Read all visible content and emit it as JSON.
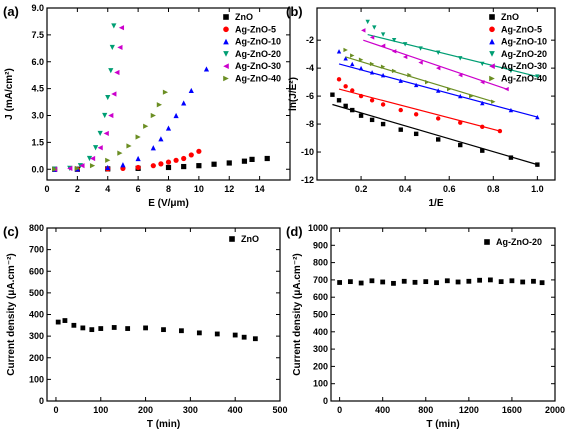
{
  "chart_data": [
    {
      "panel": "(a)",
      "type": "scatter",
      "xlabel": "E (V/μm)",
      "ylabel": "J (mA/cm²)",
      "xlim": [
        0,
        16
      ],
      "ylim": [
        -0.6,
        9.0
      ],
      "x_ticks": [
        0,
        2,
        4,
        6,
        8,
        10,
        12,
        14
      ],
      "y_ticks": [
        0.0,
        1.5,
        3.0,
        4.5,
        6.0,
        7.5,
        9.0
      ],
      "y_tick_labels": [
        "0.0",
        "1.5",
        "3.0",
        "4.5",
        "6.0",
        "7.5",
        "9.0"
      ],
      "legend_position": "top-right",
      "series": [
        {
          "name": "ZnO",
          "marker": "square",
          "color": "#000000",
          "x": [
            0.5,
            2,
            4,
            6,
            8,
            9,
            10,
            11,
            12,
            13,
            13.5,
            14.5
          ],
          "y": [
            0.0,
            0.0,
            0.02,
            0.05,
            0.1,
            0.15,
            0.2,
            0.28,
            0.35,
            0.45,
            0.55,
            0.6
          ]
        },
        {
          "name": "Ag-ZnO-5",
          "marker": "circle",
          "color": "#ff0000",
          "x": [
            0.5,
            2,
            4,
            5,
            6,
            7,
            7.5,
            8,
            8.5,
            9,
            9.5,
            10
          ],
          "y": [
            0.0,
            0.0,
            0.02,
            0.05,
            0.1,
            0.2,
            0.3,
            0.4,
            0.5,
            0.6,
            0.8,
            1.0
          ]
        },
        {
          "name": "Ag-ZnO-10",
          "marker": "triangle-up",
          "color": "#0000ff",
          "x": [
            0.5,
            2,
            4,
            5,
            6,
            7,
            7.5,
            8,
            8.5,
            9,
            9.5,
            10.5
          ],
          "y": [
            0.0,
            0.02,
            0.1,
            0.25,
            0.6,
            1.2,
            1.7,
            2.3,
            3.0,
            3.7,
            4.4,
            5.6
          ]
        },
        {
          "name": "Ag-ZnO-20",
          "marker": "triangle-down",
          "color": "#009e73",
          "x": [
            0.5,
            1.5,
            2.2,
            2.8,
            3.2,
            3.5,
            3.8,
            4.0,
            4.2,
            4.3,
            4.4
          ],
          "y": [
            0.0,
            0.05,
            0.2,
            0.6,
            1.2,
            2.0,
            3.0,
            4.0,
            5.5,
            6.8,
            8.0
          ]
        },
        {
          "name": "Ag-ZnO-30",
          "marker": "triangle-left",
          "color": "#cc00cc",
          "x": [
            0.5,
            1.5,
            2.3,
            3.0,
            3.5,
            3.9,
            4.2,
            4.4,
            4.6,
            4.8,
            4.9
          ],
          "y": [
            0.0,
            0.05,
            0.2,
            0.6,
            1.2,
            2.0,
            3.0,
            4.2,
            5.4,
            6.8,
            7.9
          ]
        },
        {
          "name": "Ag-ZnO-40",
          "marker": "triangle-right",
          "color": "#6b8e23",
          "x": [
            0.5,
            2,
            3,
            4,
            4.8,
            5.4,
            6.0,
            6.5,
            7.0,
            7.4,
            7.8
          ],
          "y": [
            0.0,
            0.05,
            0.2,
            0.5,
            0.9,
            1.3,
            1.8,
            2.4,
            3.0,
            3.6,
            4.3
          ]
        }
      ]
    },
    {
      "panel": "(b)",
      "type": "scatter",
      "xlabel": "1/E",
      "ylabel": "ln(J/E²)",
      "xlim": [
        0,
        1.08
      ],
      "ylim": [
        -12,
        0.3
      ],
      "x_ticks": [
        0.2,
        0.4,
        0.6,
        0.8,
        1.0
      ],
      "x_tick_labels": [
        "0.2",
        "0.4",
        "0.6",
        "0.8",
        "1.0"
      ],
      "y_ticks": [
        -12,
        -10,
        -8,
        -6,
        -4,
        -2
      ],
      "legend_position": "top-right",
      "series": [
        {
          "name": "ZnO",
          "marker": "square",
          "color": "#000000",
          "x": [
            0.07,
            0.1,
            0.13,
            0.16,
            0.2,
            0.25,
            0.3,
            0.38,
            0.45,
            0.55,
            0.65,
            0.75,
            0.88,
            1.0
          ],
          "y": [
            -5.9,
            -6.3,
            -6.7,
            -7.0,
            -7.4,
            -7.7,
            -8.0,
            -8.4,
            -8.7,
            -9.1,
            -9.5,
            -9.9,
            -10.4,
            -10.9
          ],
          "fit": [
            [
              0.07,
              -6.6
            ],
            [
              1.0,
              -10.9
            ]
          ]
        },
        {
          "name": "Ag-ZnO-5",
          "marker": "circle",
          "color": "#ff0000",
          "x": [
            0.1,
            0.13,
            0.16,
            0.2,
            0.25,
            0.3,
            0.38,
            0.45,
            0.55,
            0.65,
            0.75,
            0.83
          ],
          "y": [
            -4.8,
            -5.3,
            -5.6,
            -6.0,
            -6.3,
            -6.6,
            -7.0,
            -7.3,
            -7.6,
            -7.9,
            -8.2,
            -8.5
          ],
          "fit": [
            [
              0.1,
              -5.5
            ],
            [
              0.83,
              -8.5
            ]
          ]
        },
        {
          "name": "Ag-ZnO-10",
          "marker": "triangle-up",
          "color": "#0000ff",
          "x": [
            0.1,
            0.13,
            0.16,
            0.2,
            0.25,
            0.3,
            0.38,
            0.45,
            0.55,
            0.65,
            0.75,
            0.88,
            1.0
          ],
          "y": [
            -2.8,
            -3.3,
            -3.7,
            -4.0,
            -4.3,
            -4.5,
            -4.9,
            -5.2,
            -5.6,
            -6.0,
            -6.5,
            -7.0,
            -7.5
          ],
          "fit": [
            [
              0.1,
              -3.7
            ],
            [
              1.0,
              -7.5
            ]
          ]
        },
        {
          "name": "Ag-ZnO-20",
          "marker": "triangle-down",
          "color": "#009e73",
          "x": [
            0.23,
            0.26,
            0.3,
            0.35,
            0.4,
            0.47,
            0.55,
            0.65,
            0.75,
            0.88,
            1.0
          ],
          "y": [
            -0.7,
            -1.1,
            -1.6,
            -2.0,
            -2.3,
            -2.6,
            -2.9,
            -3.3,
            -3.7,
            -4.2,
            -4.6
          ],
          "fit": [
            [
              0.23,
              -1.6
            ],
            [
              1.0,
              -4.6
            ]
          ]
        },
        {
          "name": "Ag-ZnO-30",
          "marker": "triangle-left",
          "color": "#cc00cc",
          "x": [
            0.21,
            0.25,
            0.3,
            0.35,
            0.4,
            0.47,
            0.55,
            0.65,
            0.75,
            0.86
          ],
          "y": [
            -1.3,
            -1.8,
            -2.4,
            -2.8,
            -3.2,
            -3.6,
            -4.0,
            -4.5,
            -5.0,
            -5.5
          ],
          "fit": [
            [
              0.21,
              -2.0
            ],
            [
              0.86,
              -5.5
            ]
          ]
        },
        {
          "name": "Ag-ZnO-40",
          "marker": "triangle-right",
          "color": "#6b8e23",
          "x": [
            0.13,
            0.16,
            0.2,
            0.25,
            0.3,
            0.35,
            0.42,
            0.5,
            0.6,
            0.7,
            0.8
          ],
          "y": [
            -2.7,
            -3.1,
            -3.4,
            -3.7,
            -3.9,
            -4.2,
            -4.5,
            -5.0,
            -5.5,
            -6.0,
            -6.4
          ],
          "fit": [
            [
              0.13,
              -3.2
            ],
            [
              0.8,
              -6.4
            ]
          ]
        }
      ]
    },
    {
      "panel": "(c)",
      "type": "scatter",
      "xlabel": "T (min)",
      "ylabel": "Current density (μA.cm⁻²)",
      "xlim": [
        -20,
        500
      ],
      "ylim": [
        0,
        800
      ],
      "x_ticks": [
        0,
        100,
        200,
        300,
        400,
        500
      ],
      "y_ticks": [
        0,
        100,
        200,
        300,
        400,
        500,
        600,
        700,
        800
      ],
      "legend_position": "top-right",
      "series": [
        {
          "name": "ZnO",
          "marker": "square",
          "color": "#000000",
          "x": [
            5,
            20,
            40,
            60,
            80,
            100,
            130,
            160,
            200,
            240,
            280,
            320,
            360,
            400,
            420,
            445
          ],
          "y": [
            365,
            372,
            350,
            338,
            330,
            335,
            340,
            335,
            338,
            330,
            325,
            315,
            310,
            305,
            295,
            288
          ]
        }
      ]
    },
    {
      "panel": "(d)",
      "type": "scatter",
      "xlabel": "T (min)",
      "ylabel": "Current density (μA.cm⁻²)",
      "xlim": [
        -80,
        2000
      ],
      "ylim": [
        0,
        1000
      ],
      "x_ticks": [
        0,
        400,
        800,
        1200,
        1600,
        2000
      ],
      "y_ticks": [
        0,
        100,
        200,
        300,
        400,
        500,
        600,
        700,
        800,
        900,
        1000
      ],
      "legend_position": "top-right",
      "series": [
        {
          "name": "Ag-ZnO-20",
          "marker": "square",
          "color": "#000000",
          "x": [
            0,
            100,
            200,
            300,
            400,
            500,
            600,
            700,
            800,
            900,
            1000,
            1100,
            1200,
            1300,
            1400,
            1500,
            1600,
            1700,
            1800,
            1880
          ],
          "y": [
            685,
            690,
            682,
            695,
            688,
            680,
            692,
            686,
            690,
            684,
            695,
            688,
            692,
            698,
            700,
            690,
            695,
            688,
            692,
            684
          ]
        }
      ]
    }
  ]
}
